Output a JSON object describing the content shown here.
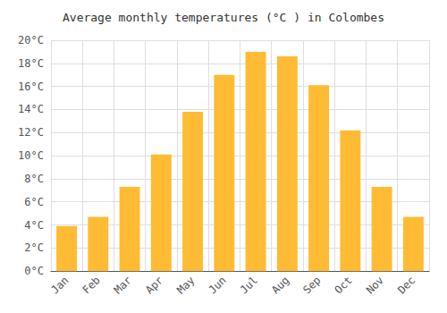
{
  "chart_data": {
    "type": "bar",
    "title": "Average monthly temperatures (°C ) in Colombes",
    "categories": [
      "Jan",
      "Feb",
      "Mar",
      "Apr",
      "May",
      "Jun",
      "Jul",
      "Aug",
      "Sep",
      "Oct",
      "Nov",
      "Dec"
    ],
    "values": [
      3.9,
      4.7,
      7.3,
      10.1,
      13.8,
      17.0,
      19.0,
      18.6,
      16.1,
      12.2,
      7.3,
      4.7
    ],
    "color": "#FFBB33",
    "ylim": [
      0,
      20
    ],
    "yticks": [
      {
        "value": 0,
        "label": "0°C"
      },
      {
        "value": 2,
        "label": "2°C"
      },
      {
        "value": 4,
        "label": "4°C"
      },
      {
        "value": 6,
        "label": "6°C"
      },
      {
        "value": 8,
        "label": "8°C"
      },
      {
        "value": 10,
        "label": "10°C"
      },
      {
        "value": 12,
        "label": "12°C"
      },
      {
        "value": 14,
        "label": "14°C"
      },
      {
        "value": 16,
        "label": "16°C"
      },
      {
        "value": 18,
        "label": "18°C"
      },
      {
        "value": 20,
        "label": "20°C"
      }
    ],
    "grid": true
  }
}
